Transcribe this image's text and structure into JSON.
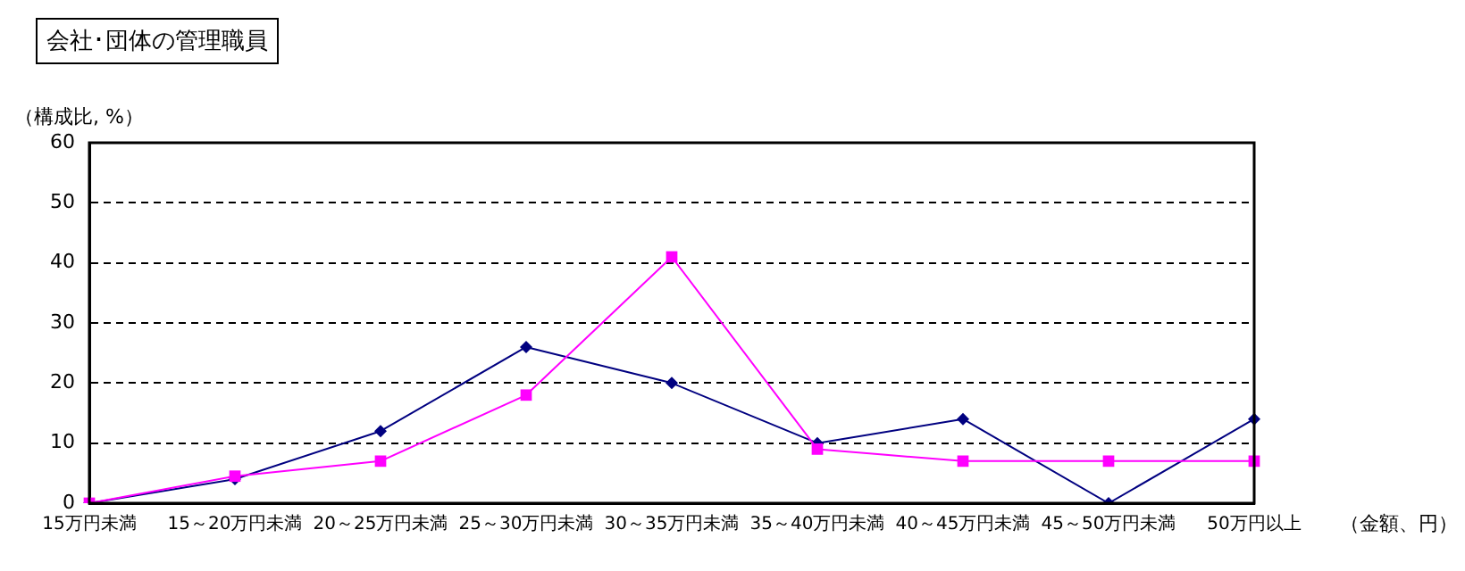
{
  "chart_data": {
    "type": "line",
    "title": "会社･団体の管理職員",
    "ylabel": "（構成比, %）",
    "xlabel": "（金額、円）",
    "categories": [
      "15万円未満",
      "15～20万円未満",
      "20～25万円未満",
      "25～30万円未満",
      "30～35万円未満",
      "35～40万円未満",
      "40～45万円未満",
      "45～50万円未満",
      "50万円以上"
    ],
    "series": [
      {
        "color": "#000080",
        "marker": "diamond",
        "values": [
          0,
          4,
          12,
          26,
          20,
          10,
          14,
          0,
          14
        ]
      },
      {
        "color": "#ff00ff",
        "marker": "square",
        "values": [
          0,
          4.5,
          7,
          18,
          41,
          9,
          7,
          7,
          7
        ]
      }
    ],
    "ylim": [
      0,
      60
    ],
    "yticks": [
      0,
      10,
      20,
      30,
      40,
      50,
      60
    ],
    "grid": "y",
    "legend": false,
    "line_style": "solid"
  }
}
